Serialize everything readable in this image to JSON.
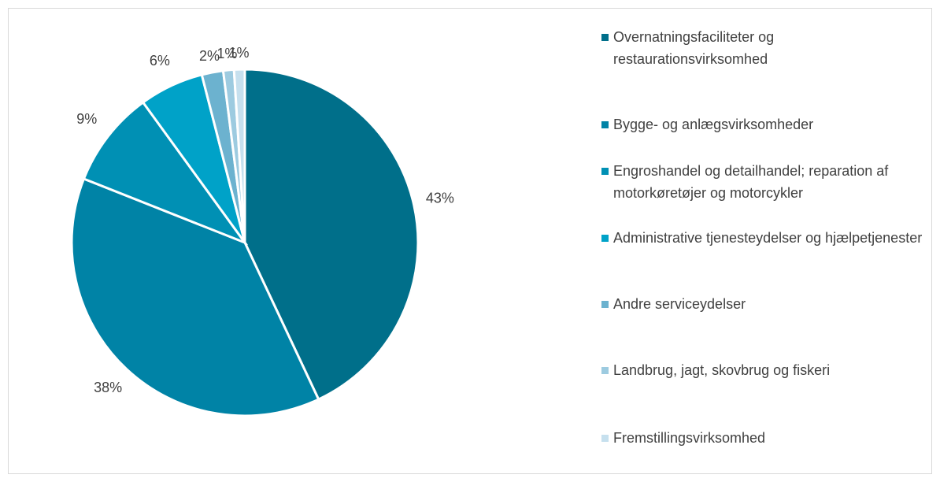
{
  "chart_data": {
    "type": "pie",
    "categories": [
      "Overnatningsfaciliteter og restaurationsvirksomhed",
      "Bygge- og anlægsvirksomheder",
      "Engroshandel og detailhandel; reparation af motorkøretøjer og motorcykler",
      "Administrative tjenesteydelser og hjælpetjenester",
      "Andre serviceydelser",
      "Landbrug, jagt, skovbrug og fiskeri",
      "Fremstillingsvirksomhed"
    ],
    "values": [
      43,
      38,
      9,
      6,
      2,
      1,
      1
    ],
    "value_labels": [
      "43%",
      "38%",
      "9%",
      "6%",
      "2%",
      "1%",
      "1%"
    ],
    "colors": [
      "#006f8a",
      "#0083a6",
      "#0090b4",
      "#00a2c8",
      "#6cb2cf",
      "#9dcbe0",
      "#c6e0ee"
    ],
    "legend": "right"
  }
}
